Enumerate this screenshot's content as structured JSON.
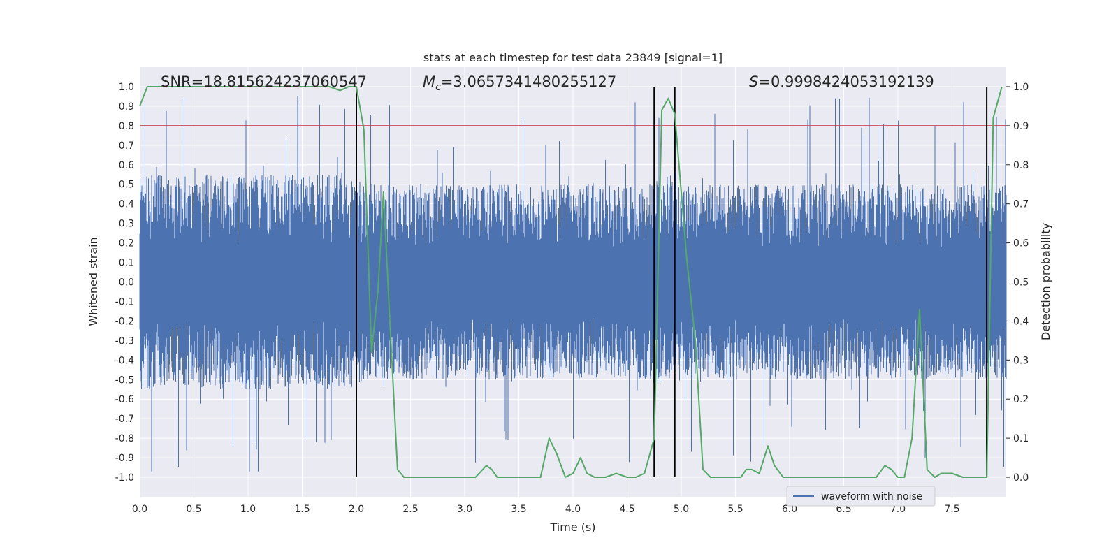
{
  "chart_data": {
    "type": "line",
    "title": "stats at each timestep for test data 23849 [signal=1]",
    "xlabel": "Time (s)",
    "ylabel": "Whitened strain",
    "y2label": "Detection probability",
    "xlim": [
      0.0,
      8.0
    ],
    "ylim": [
      -1.1,
      1.1
    ],
    "y2lim": [
      -0.05,
      1.05
    ],
    "x_ticks": [
      "0.0",
      "0.5",
      "1.0",
      "1.5",
      "2.0",
      "2.5",
      "3.0",
      "3.5",
      "4.0",
      "4.5",
      "5.0",
      "5.5",
      "6.0",
      "6.5",
      "7.0",
      "7.5"
    ],
    "y_ticks": [
      "1.0",
      "0.9",
      "0.8",
      "0.7",
      "0.6",
      "0.5",
      "0.4",
      "0.3",
      "0.2",
      "0.1",
      "0.0",
      "-0.1",
      "-0.2",
      "-0.3",
      "-0.4",
      "-0.5",
      "-0.6",
      "-0.7",
      "-0.8",
      "-0.9",
      "-1.0"
    ],
    "y2_ticks": [
      "1.0",
      "0.9",
      "0.8",
      "0.7",
      "0.6",
      "0.5",
      "0.4",
      "0.3",
      "0.2",
      "0.1",
      "0.0"
    ],
    "annotations": {
      "snr": "SNR=18.815624237060547",
      "mc": "=3.0657341480255127",
      "s": "=0.9998424053192139"
    },
    "threshold": 0.9,
    "vertical_lines_x": [
      2.0,
      4.75,
      4.94,
      7.82
    ],
    "legend": {
      "label": "waveform with noise",
      "placement": "lower-right"
    },
    "colors": {
      "waveform": "#4c72b0",
      "probability": "#55a868",
      "threshold": "#c44e52",
      "markers": "#000000",
      "background": "#eaeaf2",
      "grid": "#ffffff"
    },
    "series": [
      {
        "name": "waveform with noise",
        "kind": "noisy strain, approx. |amplitude| envelope",
        "envelope_x": [
          0.0,
          2.0,
          2.1,
          4.7,
          4.9,
          5.0,
          8.0
        ],
        "envelope_y": [
          0.55,
          0.55,
          0.5,
          0.5,
          0.55,
          0.5,
          0.5
        ]
      },
      {
        "axis": "y2",
        "x": [
          0.0,
          0.07,
          0.5,
          1.0,
          1.5,
          1.75,
          1.85,
          1.93,
          2.0,
          2.07,
          2.14,
          2.2,
          2.25,
          2.3,
          2.38,
          2.44,
          2.5,
          2.75,
          3.0,
          3.1,
          3.2,
          3.25,
          3.3,
          3.45,
          3.55,
          3.7,
          3.78,
          3.85,
          3.93,
          4.0,
          4.07,
          4.13,
          4.2,
          4.3,
          4.4,
          4.5,
          4.58,
          4.66,
          4.75,
          4.82,
          4.88,
          4.94,
          5.05,
          5.13,
          5.2,
          5.27,
          5.4,
          5.55,
          5.6,
          5.65,
          5.72,
          5.8,
          5.86,
          5.94,
          6.0,
          6.2,
          6.5,
          6.8,
          6.88,
          6.94,
          7.0,
          7.06,
          7.13,
          7.2,
          7.27,
          7.34,
          7.4,
          7.5,
          7.6,
          7.82,
          7.88,
          7.96
        ],
        "y": [
          0.95,
          1.0,
          1.0,
          1.0,
          1.0,
          1.0,
          0.99,
          1.0,
          1.0,
          0.89,
          0.32,
          0.48,
          0.73,
          0.45,
          0.02,
          0.0,
          0.0,
          0.0,
          0.0,
          0.0,
          0.03,
          0.02,
          0.0,
          0.0,
          0.0,
          0.0,
          0.1,
          0.06,
          0.0,
          0.01,
          0.05,
          0.01,
          0.0,
          0.0,
          0.01,
          0.0,
          0.0,
          0.01,
          0.1,
          0.94,
          0.97,
          0.93,
          0.56,
          0.35,
          0.02,
          0.0,
          0.0,
          0.0,
          0.02,
          0.02,
          0.01,
          0.08,
          0.03,
          0.0,
          0.0,
          0.0,
          0.0,
          0.0,
          0.03,
          0.02,
          0.0,
          0.0,
          0.1,
          0.43,
          0.02,
          0.0,
          0.01,
          0.01,
          0.0,
          0.0,
          0.92,
          1.0
        ]
      }
    ]
  }
}
